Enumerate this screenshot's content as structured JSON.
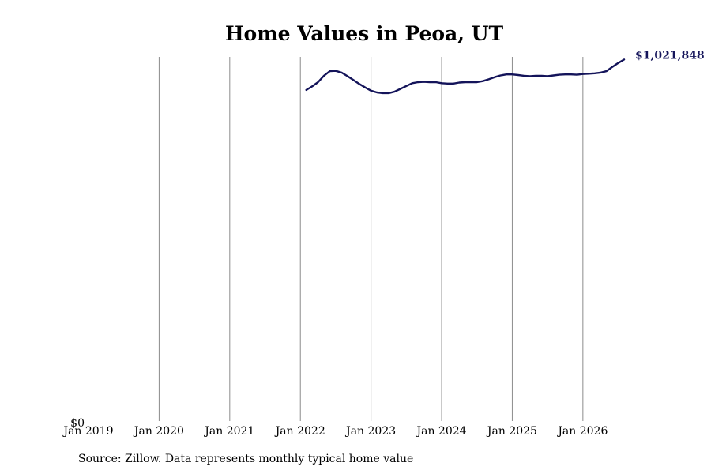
{
  "chart_data": {
    "type": "line",
    "title": "Home Values in Peoa, UT",
    "x_tick_labels": [
      "Jan 2019",
      "Jan 2020",
      "Jan 2021",
      "Jan 2022",
      "Jan 2023",
      "Jan 2024",
      "Jan 2025",
      "Jan 2026"
    ],
    "y_tick_labels": [
      "$0"
    ],
    "xlim": [
      "2019-01",
      "2026-08"
    ],
    "ylim": [
      0,
      1025000
    ],
    "grid": "vertical",
    "legend": "none",
    "end_label": "$1,021,848",
    "series": [
      {
        "color": "#14145a",
        "points": [
          [
            "2022-02",
            936000
          ],
          [
            "2022-03",
            946000
          ],
          [
            "2022-04",
            958000
          ],
          [
            "2022-05",
            976000
          ],
          [
            "2022-06",
            989000
          ],
          [
            "2022-07",
            990000
          ],
          [
            "2022-08",
            985000
          ],
          [
            "2022-09",
            975000
          ],
          [
            "2022-10",
            964000
          ],
          [
            "2022-11",
            953000
          ],
          [
            "2022-12",
            943000
          ],
          [
            "2023-01",
            934000
          ],
          [
            "2023-02",
            929000
          ],
          [
            "2023-03",
            927000
          ],
          [
            "2023-04",
            927000
          ],
          [
            "2023-05",
            931000
          ],
          [
            "2023-06",
            939000
          ],
          [
            "2023-07",
            947000
          ],
          [
            "2023-08",
            955000
          ],
          [
            "2023-09",
            958000
          ],
          [
            "2023-10",
            959000
          ],
          [
            "2023-11",
            958000
          ],
          [
            "2023-12",
            958000
          ],
          [
            "2024-01",
            955000
          ],
          [
            "2024-02",
            954000
          ],
          [
            "2024-03",
            954000
          ],
          [
            "2024-04",
            957000
          ],
          [
            "2024-05",
            958000
          ],
          [
            "2024-06",
            958000
          ],
          [
            "2024-07",
            958000
          ],
          [
            "2024-08",
            961000
          ],
          [
            "2024-09",
            966000
          ],
          [
            "2024-10",
            972000
          ],
          [
            "2024-11",
            977000
          ],
          [
            "2024-12",
            980000
          ],
          [
            "2025-01",
            980000
          ],
          [
            "2025-02",
            978000
          ],
          [
            "2025-03",
            976000
          ],
          [
            "2025-04",
            975000
          ],
          [
            "2025-05",
            976000
          ],
          [
            "2025-06",
            976000
          ],
          [
            "2025-07",
            975000
          ],
          [
            "2025-08",
            977000
          ],
          [
            "2025-09",
            979000
          ],
          [
            "2025-10",
            980000
          ],
          [
            "2025-11",
            980000
          ],
          [
            "2025-12",
            979000
          ],
          [
            "2026-01",
            981000
          ],
          [
            "2026-02",
            982000
          ],
          [
            "2026-03",
            983000
          ],
          [
            "2026-04",
            985000
          ],
          [
            "2026-05",
            989000
          ],
          [
            "2026-06",
            1001000
          ],
          [
            "2026-07",
            1012000
          ],
          [
            "2026-08",
            1021848
          ]
        ]
      }
    ]
  },
  "source_text": "Source: Zillow. Data represents monthly typical home value"
}
